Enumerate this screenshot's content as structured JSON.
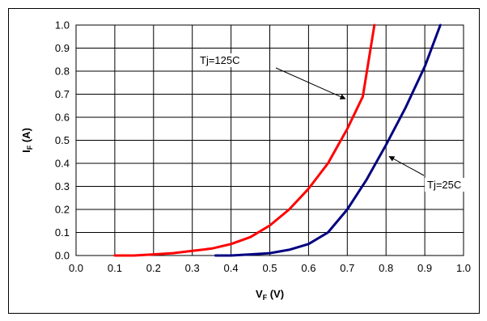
{
  "chart_data": {
    "type": "line",
    "title": "",
    "xlabel": "V",
    "xlabel_sub": "F",
    "xlabel_unit": " (V)",
    "ylabel": "I",
    "ylabel_sub": "F",
    "ylabel_unit": " (A)",
    "xlim": [
      0.0,
      1.0
    ],
    "ylim": [
      0.0,
      1.0
    ],
    "xticks": [
      "0.0",
      "0.1",
      "0.2",
      "0.3",
      "0.4",
      "0.5",
      "0.6",
      "0.7",
      "0.8",
      "0.9",
      "1.0"
    ],
    "yticks": [
      "0.0",
      "0.1",
      "0.2",
      "0.3",
      "0.4",
      "0.5",
      "0.6",
      "0.7",
      "0.8",
      "0.9",
      "1.0"
    ],
    "grid": true,
    "legend": "none",
    "series": [
      {
        "name": "Tj=125C",
        "color": "#ff0000",
        "x": [
          0.1,
          0.15,
          0.2,
          0.25,
          0.3,
          0.35,
          0.4,
          0.45,
          0.5,
          0.55,
          0.6,
          0.65,
          0.7,
          0.74,
          0.77
        ],
        "y": [
          0.0,
          0.0,
          0.005,
          0.01,
          0.02,
          0.03,
          0.05,
          0.08,
          0.13,
          0.2,
          0.29,
          0.4,
          0.55,
          0.69,
          1.0
        ]
      },
      {
        "name": "Tj=25C",
        "color": "#000080",
        "x": [
          0.36,
          0.4,
          0.45,
          0.5,
          0.55,
          0.6,
          0.65,
          0.7,
          0.75,
          0.8,
          0.85,
          0.9,
          0.94
        ],
        "y": [
          0.0,
          0.0,
          0.005,
          0.01,
          0.025,
          0.05,
          0.1,
          0.2,
          0.33,
          0.48,
          0.64,
          0.82,
          1.0
        ]
      }
    ],
    "annotations": [
      {
        "text": "Tj=125C",
        "series": 0
      },
      {
        "text": "Tj=25C",
        "series": 1
      }
    ]
  }
}
